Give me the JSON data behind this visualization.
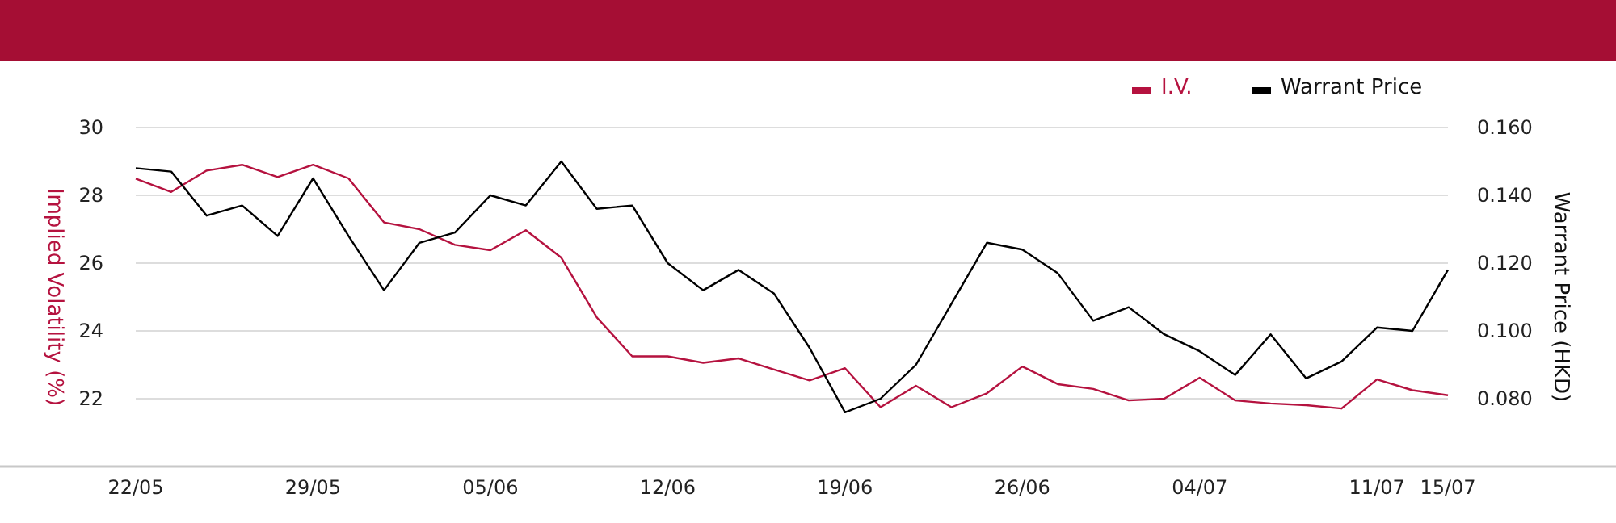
{
  "chart_data": {
    "type": "line",
    "ylabel": "Implied Volatility (%)",
    "y2label": "Warrant Price (HKD)",
    "categories": [
      "22/05",
      null,
      null,
      null,
      null,
      "29/05",
      null,
      null,
      null,
      null,
      "05/06",
      null,
      null,
      null,
      null,
      "12/06",
      null,
      null,
      null,
      null,
      "19/06",
      null,
      null,
      null,
      null,
      "26/06",
      null,
      null,
      null,
      null,
      "04/07",
      null,
      null,
      null,
      null,
      "11/07",
      null,
      "15/07"
    ],
    "series": [
      {
        "name": "I.V.",
        "color": "#b5123f",
        "values": [
          28.49,
          28.1,
          28.73,
          28.9,
          28.54,
          28.9,
          28.5,
          27.2,
          27.0,
          26.54,
          26.38,
          26.97,
          26.16,
          24.4,
          23.25,
          23.25,
          23.06,
          23.19,
          22.86,
          22.54,
          22.9,
          21.75,
          22.38,
          21.75,
          22.16,
          22.95,
          22.43,
          22.29,
          21.95,
          22.0,
          22.62,
          21.95,
          21.86,
          21.81,
          21.71,
          22.57,
          22.25,
          22.1
        ]
      },
      {
        "name": "Warrant Price",
        "color": "#000000",
        "axis": "y2",
        "values": [
          0.148,
          0.147,
          0.134,
          0.137,
          0.128,
          0.145,
          0.128,
          0.112,
          0.126,
          0.129,
          0.14,
          0.137,
          0.15,
          0.136,
          0.137,
          0.12,
          0.112,
          0.118,
          0.111,
          0.095,
          0.076,
          0.08,
          0.09,
          0.108,
          0.126,
          0.124,
          0.117,
          0.103,
          0.107,
          0.099,
          0.094,
          0.087,
          0.099,
          0.086,
          0.091,
          0.101,
          0.1,
          0.118
        ]
      }
    ],
    "ylim": [
      20,
      30
    ],
    "yticks": [
      22,
      24,
      26,
      28,
      30
    ],
    "y2lim": [
      0.06,
      0.16
    ],
    "y2ticks": [
      {
        "value": 0.08,
        "label": "0.080"
      },
      {
        "value": 0.1,
        "label": "0.100"
      },
      {
        "value": 0.12,
        "label": "0.120"
      },
      {
        "value": 0.14,
        "label": "0.140"
      },
      {
        "value": 0.16,
        "label": "0.160"
      }
    ],
    "grid": "y",
    "legend": "top right"
  }
}
